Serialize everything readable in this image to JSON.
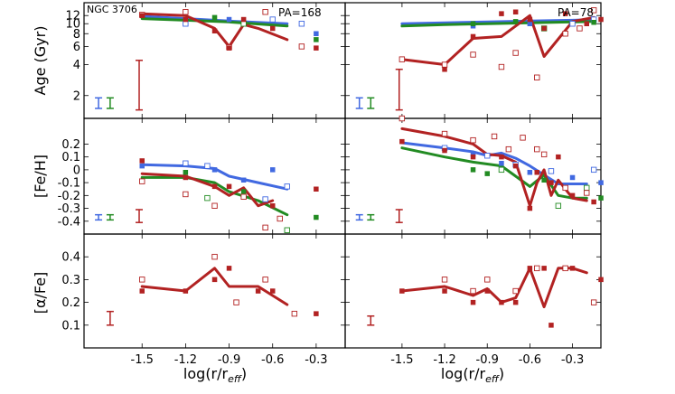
{
  "chart_data": {
    "type": "scatter",
    "title": "NGC 3706",
    "xlabel_parts": [
      "log(r/r",
      "eff",
      ")"
    ],
    "x_ticks": [
      "-1.5",
      "-1.2",
      "-0.9",
      "-0.6",
      "-0.3"
    ],
    "x_tick_values": [
      -1.5,
      -1.2,
      -0.9,
      -0.6,
      -0.3
    ],
    "xlim": [
      -1.9,
      -0.1
    ],
    "colors": {
      "blue": "#4169e1",
      "green": "#228b22",
      "red": "#b22222"
    },
    "rows": [
      {
        "key": "age",
        "ylabel": "Age (Gyr)",
        "scale": "log",
        "ylim": [
          1.2,
          16
        ],
        "ticks": [
          2,
          4,
          6,
          8,
          10,
          12
        ],
        "tick_labels": [
          "2",
          "4",
          "6",
          "8",
          "10",
          "12"
        ]
      },
      {
        "key": "feh",
        "ylabel": "[Fe/H]",
        "scale": "linear",
        "ylim": [
          -0.5,
          0.4
        ],
        "ticks": [
          -0.4,
          -0.3,
          -0.2,
          -0.1,
          0.0,
          0.1,
          0.2
        ],
        "tick_labels": [
          "-0.4",
          "-0.3",
          "-0.2",
          "-0.1",
          "0",
          "0.1",
          "0.2"
        ]
      },
      {
        "key": "afe",
        "ylabel": "[α/Fe]",
        "scale": "linear",
        "ylim": [
          0.0,
          0.5
        ],
        "ticks": [
          0.1,
          0.2,
          0.3,
          0.4
        ],
        "tick_labels": [
          "0.1",
          "0.2",
          "0.3",
          "0.4"
        ]
      }
    ],
    "panels": [
      {
        "pa_label": "PA=168",
        "age": {
          "lines": {
            "blue": {
              "x": [
                -1.5,
                -1.2,
                -0.9,
                -0.5
              ],
              "y": [
                11.8,
                11.2,
                10.6,
                10.0
              ]
            },
            "green": {
              "x": [
                -1.5,
                -1.2,
                -0.9,
                -0.5
              ],
              "y": [
                11.2,
                10.8,
                10.4,
                9.5
              ]
            },
            "red": {
              "x": [
                -1.5,
                -1.2,
                -1.0,
                -0.9,
                -0.8,
                -0.7,
                -0.5
              ],
              "y": [
                12.5,
                12.0,
                9.0,
                6.0,
                9.8,
                9.0,
                7.0
              ]
            }
          },
          "filled_red": {
            "x": [
              -1.5,
              -1.2,
              -1.0,
              -0.9,
              -0.8,
              -0.6,
              -0.3
            ],
            "y": [
              12.0,
              11.0,
              8.5,
              5.8,
              11.0,
              9.0,
              5.8
            ]
          },
          "open_red": {
            "x": [
              -1.5,
              -1.2,
              -0.9,
              -0.65,
              -0.4
            ],
            "y": [
              12.2,
              13.0,
              5.9,
              13.0,
              6.0
            ]
          },
          "filled_blue": {
            "x": [
              -0.9,
              -0.3
            ],
            "y": [
              11.0,
              8.0
            ]
          },
          "open_blue": {
            "x": [
              -1.2,
              -0.6,
              -0.4
            ],
            "y": [
              10.0,
              11.0,
              10.0
            ]
          },
          "filled_green": {
            "x": [
              -1.0,
              -0.3
            ],
            "y": [
              11.5,
              7.0
            ]
          },
          "open_green": {
            "x": [
              -0.8
            ],
            "y": [
              10.0
            ]
          },
          "error_bars": [
            {
              "color": "blue",
              "x": -1.8,
              "y_low": 1.5,
              "y_high": 1.9
            },
            {
              "color": "green",
              "x": -1.72,
              "y_low": 1.5,
              "y_high": 1.9
            },
            {
              "color": "red",
              "x": -1.52,
              "y_low": 1.45,
              "y_high": 4.4
            }
          ]
        },
        "feh": {
          "lines": {
            "blue": {
              "x": [
                -1.5,
                -1.2,
                -1.0,
                -0.9,
                -0.7,
                -0.5
              ],
              "y": [
                0.04,
                0.03,
                0.01,
                -0.05,
                -0.1,
                -0.15
              ]
            },
            "green": {
              "x": [
                -1.5,
                -1.2,
                -1.0,
                -0.9,
                -0.7,
                -0.5
              ],
              "y": [
                -0.06,
                -0.06,
                -0.1,
                -0.17,
                -0.24,
                -0.35
              ]
            },
            "red": {
              "x": [
                -1.5,
                -1.2,
                -1.0,
                -0.9,
                -0.8,
                -0.7,
                -0.6
              ],
              "y": [
                -0.03,
                -0.05,
                -0.13,
                -0.2,
                -0.14,
                -0.28,
                -0.24
              ]
            }
          },
          "filled_red": {
            "x": [
              -1.5,
              -1.2,
              -1.0,
              -0.9,
              -0.6,
              -0.3
            ],
            "y": [
              0.07,
              -0.06,
              -0.13,
              -0.13,
              -0.28,
              -0.15
            ]
          },
          "open_red": {
            "x": [
              -1.5,
              -1.2,
              -1.0,
              -0.8,
              -0.65,
              -0.55
            ],
            "y": [
              -0.09,
              -0.19,
              -0.28,
              -0.21,
              -0.45,
              -0.38
            ]
          },
          "filled_blue": {
            "x": [
              -1.5,
              -1.0,
              -0.8,
              -0.6
            ],
            "y": [
              0.03,
              0.0,
              -0.08,
              0.0
            ]
          },
          "open_blue": {
            "x": [
              -1.2,
              -1.05,
              -0.65,
              -0.5
            ],
            "y": [
              0.05,
              0.03,
              -0.23,
              -0.13
            ]
          },
          "filled_green": {
            "x": [
              -1.2,
              -0.8,
              -0.3
            ],
            "y": [
              -0.02,
              -0.17,
              -0.37
            ]
          },
          "open_green": {
            "x": [
              -1.05,
              -0.5
            ],
            "y": [
              -0.22,
              -0.47
            ]
          },
          "error_bars": [
            {
              "color": "blue",
              "x": -1.8,
              "y_low": -0.39,
              "y_high": -0.35
            },
            {
              "color": "green",
              "x": -1.72,
              "y_low": -0.39,
              "y_high": -0.35
            },
            {
              "color": "red",
              "x": -1.52,
              "y_low": -0.41,
              "y_high": -0.31
            }
          ]
        },
        "afe": {
          "lines": {
            "red": {
              "x": [
                -1.5,
                -1.2,
                -1.0,
                -0.9,
                -0.7,
                -0.5
              ],
              "y": [
                0.27,
                0.25,
                0.35,
                0.27,
                0.27,
                0.19
              ]
            }
          },
          "filled_red": {
            "x": [
              -1.5,
              -1.2,
              -1.0,
              -0.9,
              -0.7,
              -0.6,
              -0.3
            ],
            "y": [
              0.25,
              0.25,
              0.3,
              0.35,
              0.25,
              0.25,
              0.15
            ]
          },
          "open_red": {
            "x": [
              -1.5,
              -1.0,
              -0.85,
              -0.65,
              -0.45
            ],
            "y": [
              0.3,
              0.4,
              0.2,
              0.3,
              0.15
            ]
          },
          "error_bars": [
            {
              "color": "red",
              "x": -1.72,
              "y_low": 0.1,
              "y_high": 0.16
            }
          ]
        }
      },
      {
        "pa_label": "PA=78",
        "age": {
          "lines": {
            "blue": {
              "x": [
                -1.5,
                -1.2,
                -0.9,
                -0.6,
                -0.3,
                -0.15
              ],
              "y": [
                10.0,
                10.2,
                10.4,
                10.6,
                10.8,
                11.0
              ]
            },
            "green": {
              "x": [
                -1.5,
                -1.2,
                -0.9,
                -0.6,
                -0.3,
                -0.15
              ],
              "y": [
                9.5,
                9.8,
                10.0,
                10.2,
                10.4,
                10.5
              ]
            },
            "red": {
              "x": [
                -1.5,
                -1.2,
                -1.0,
                -0.8,
                -0.6,
                -0.5,
                -0.3,
                -0.15
              ],
              "y": [
                4.5,
                4.0,
                7.2,
                7.5,
                12.0,
                4.8,
                10.5,
                11.5
              ]
            }
          },
          "filled_red": {
            "x": [
              -1.2,
              -1.0,
              -0.8,
              -0.7,
              -0.6,
              -0.5,
              -0.35,
              -0.2,
              -0.1
            ],
            "y": [
              3.6,
              7.5,
              12.5,
              13.0,
              11.0,
              9.0,
              12.5,
              10.0,
              11.0
            ]
          },
          "open_red": {
            "x": [
              -1.5,
              -1.2,
              -1.0,
              -0.8,
              -0.7,
              -0.55,
              -0.35,
              -0.25,
              -0.15
            ],
            "y": [
              4.5,
              4.0,
              5.0,
              3.8,
              5.2,
              3.0,
              8.0,
              9.0,
              13.5
            ]
          },
          "filled_blue": {
            "x": [
              -1.0,
              -0.6
            ],
            "y": [
              9.5,
              10.0
            ]
          },
          "open_blue": {
            "x": [
              -0.3,
              -0.15
            ],
            "y": [
              10.0,
              11.0
            ]
          },
          "filled_green": {
            "x": [
              -1.0,
              -0.7,
              -0.15
            ],
            "y": [
              10.0,
              10.5,
              10.3
            ]
          },
          "open_green": {
            "x": [
              -0.5
            ],
            "y": [
              9.0
            ]
          },
          "error_bars": [
            {
              "color": "blue",
              "x": -1.8,
              "y_low": 1.5,
              "y_high": 1.9
            },
            {
              "color": "green",
              "x": -1.72,
              "y_low": 1.5,
              "y_high": 1.9
            },
            {
              "color": "red",
              "x": -1.52,
              "y_low": 1.45,
              "y_high": 3.6
            }
          ]
        },
        "feh": {
          "lines": {
            "blue": {
              "x": [
                -1.5,
                -1.2,
                -1.0,
                -0.9,
                -0.8,
                -0.7,
                -0.6,
                -0.5,
                -0.4,
                -0.3,
                -0.2
              ],
              "y": [
                0.21,
                0.17,
                0.14,
                0.11,
                0.13,
                0.09,
                0.03,
                -0.04,
                -0.11,
                -0.11,
                -0.11
              ]
            },
            "green": {
              "x": [
                -1.5,
                -1.2,
                -1.0,
                -0.8,
                -0.7,
                -0.6,
                -0.5,
                -0.4,
                -0.3,
                -0.2
              ],
              "y": [
                0.17,
                0.1,
                0.06,
                0.03,
                -0.05,
                -0.13,
                -0.04,
                -0.2,
                -0.22,
                -0.22
              ]
            },
            "red": {
              "x": [
                -1.5,
                -1.2,
                -1.0,
                -0.9,
                -0.8,
                -0.7,
                -0.6,
                -0.55,
                -0.5,
                -0.45,
                -0.4,
                -0.3,
                -0.2
              ],
              "y": [
                0.32,
                0.26,
                0.2,
                0.12,
                0.11,
                0.06,
                -0.28,
                -0.1,
                0.0,
                -0.2,
                -0.08,
                -0.22,
                -0.24
              ]
            }
          },
          "filled_red": {
            "x": [
              -1.5,
              -1.2,
              -1.0,
              -0.8,
              -0.7,
              -0.6,
              -0.55,
              -0.45,
              -0.4,
              -0.3,
              -0.15
            ],
            "y": [
              0.22,
              0.15,
              0.1,
              0.1,
              0.03,
              -0.3,
              -0.02,
              -0.1,
              0.1,
              -0.2,
              -0.25
            ]
          },
          "open_red": {
            "x": [
              -1.5,
              -1.2,
              -1.0,
              -0.85,
              -0.75,
              -0.65,
              -0.55,
              -0.5,
              -0.35,
              -0.2
            ],
            "y": [
              0.4,
              0.28,
              0.23,
              0.26,
              0.16,
              0.25,
              0.16,
              0.12,
              -0.14,
              -0.18
            ]
          },
          "filled_blue": {
            "x": [
              -1.0,
              -0.8,
              -0.6,
              -0.3,
              -0.1
            ],
            "y": [
              0.12,
              0.05,
              -0.02,
              -0.06,
              -0.1
            ]
          },
          "open_blue": {
            "x": [
              -1.2,
              -0.9,
              -0.7,
              -0.45,
              -0.15
            ],
            "y": [
              0.17,
              0.11,
              0.04,
              -0.01,
              0.0
            ]
          },
          "filled_green": {
            "x": [
              -1.0,
              -0.9,
              -0.5,
              -0.1
            ],
            "y": [
              0.0,
              -0.03,
              -0.08,
              -0.22
            ]
          },
          "open_green": {
            "x": [
              -0.8,
              -0.4,
              -0.2
            ],
            "y": [
              0.0,
              -0.28,
              -0.14
            ]
          },
          "error_bars": [
            {
              "color": "blue",
              "x": -1.8,
              "y_low": -0.39,
              "y_high": -0.35
            },
            {
              "color": "green",
              "x": -1.72,
              "y_low": -0.39,
              "y_high": -0.35
            },
            {
              "color": "red",
              "x": -1.52,
              "y_low": -0.41,
              "y_high": -0.31
            }
          ]
        },
        "afe": {
          "lines": {
            "red": {
              "x": [
                -1.5,
                -1.2,
                -1.0,
                -0.9,
                -0.8,
                -0.7,
                -0.6,
                -0.5,
                -0.4,
                -0.3,
                -0.2
              ],
              "y": [
                0.25,
                0.27,
                0.23,
                0.26,
                0.2,
                0.22,
                0.35,
                0.18,
                0.35,
                0.35,
                0.33
              ]
            }
          },
          "filled_red": {
            "x": [
              -1.5,
              -1.2,
              -1.0,
              -0.9,
              -0.8,
              -0.7,
              -0.6,
              -0.5,
              -0.45,
              -0.3,
              -0.1
            ],
            "y": [
              0.25,
              0.25,
              0.2,
              0.25,
              0.2,
              0.2,
              0.35,
              0.35,
              0.1,
              0.35,
              0.3
            ]
          },
          "open_red": {
            "x": [
              -1.2,
              -1.0,
              -0.9,
              -0.7,
              -0.55,
              -0.35,
              -0.15
            ],
            "y": [
              0.3,
              0.25,
              0.3,
              0.25,
              0.35,
              0.35,
              0.2
            ]
          },
          "error_bars": [
            {
              "color": "red",
              "x": -1.72,
              "y_low": 0.1,
              "y_high": 0.14
            }
          ]
        }
      }
    ]
  }
}
